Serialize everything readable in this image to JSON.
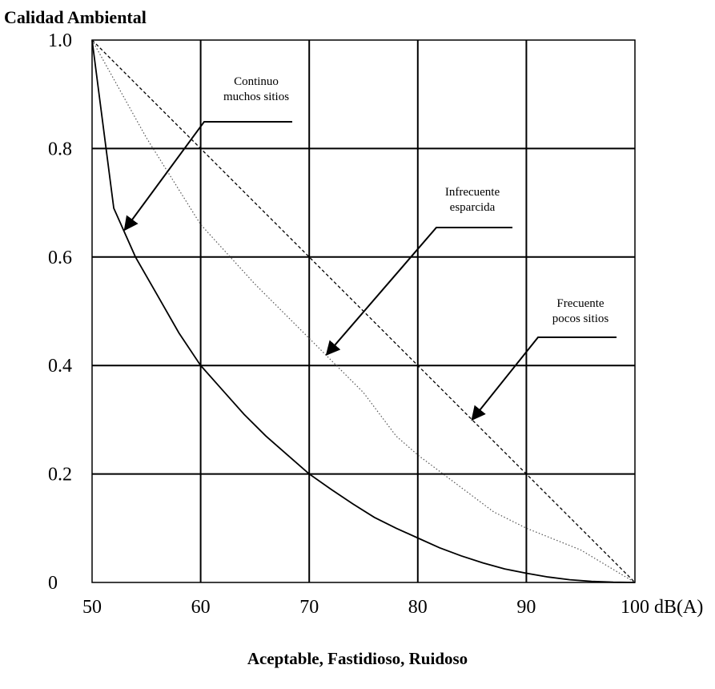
{
  "chart_data": {
    "type": "line",
    "title": "",
    "ylabel": "Calidad Ambiental",
    "xlabel": "Aceptable, Fastidioso, Ruidoso",
    "x_unit": "dB(A)",
    "xlim": [
      50,
      100
    ],
    "ylim": [
      0,
      1.0
    ],
    "x_ticks": [
      "50",
      "60",
      "70",
      "80",
      "90",
      "100 dB(A)"
    ],
    "y_ticks": [
      "0",
      "0.2",
      "0.4",
      "0.6",
      "0.8",
      "1.0"
    ],
    "grid": true,
    "series": [
      {
        "name": "Continuo muchos sitios",
        "style": "solid",
        "x": [
          50,
          52,
          54,
          56,
          58,
          60,
          62,
          64,
          66,
          68,
          70,
          72,
          74,
          76,
          78,
          80,
          82,
          84,
          86,
          88,
          90,
          92,
          94,
          96,
          98,
          100
        ],
        "y": [
          1.0,
          0.69,
          0.6,
          0.53,
          0.46,
          0.4,
          0.355,
          0.31,
          0.27,
          0.235,
          0.2,
          0.172,
          0.145,
          0.12,
          0.1,
          0.082,
          0.064,
          0.049,
          0.036,
          0.025,
          0.017,
          0.01,
          0.005,
          0.002,
          0.0005,
          0.0
        ]
      },
      {
        "name": "Infrecuente esparcida",
        "style": "dotted",
        "x": [
          50,
          55,
          60,
          65,
          70,
          75,
          78,
          80,
          85,
          87,
          90,
          95,
          100
        ],
        "y": [
          1.0,
          0.82,
          0.66,
          0.55,
          0.45,
          0.35,
          0.27,
          0.235,
          0.16,
          0.13,
          0.1,
          0.06,
          0.0
        ]
      },
      {
        "name": "Frecuente pocos sitios",
        "style": "dashed",
        "x": [
          50,
          100
        ],
        "y": [
          1.0,
          0.0
        ]
      }
    ],
    "annotations": [
      {
        "lines": [
          "Continuo",
          "muchos sitios"
        ],
        "target_series": "Continuo muchos sitios",
        "target": [
          53,
          0.65
        ]
      },
      {
        "lines": [
          "Infrecuente",
          "esparcida"
        ],
        "target_series": "Infrecuente esparcida",
        "target": [
          71.6,
          0.42
        ]
      },
      {
        "lines": [
          "Frecuente",
          "pocos sitios"
        ],
        "target_series": "Frecuente pocos sitios",
        "target": [
          85,
          0.3
        ]
      }
    ]
  }
}
